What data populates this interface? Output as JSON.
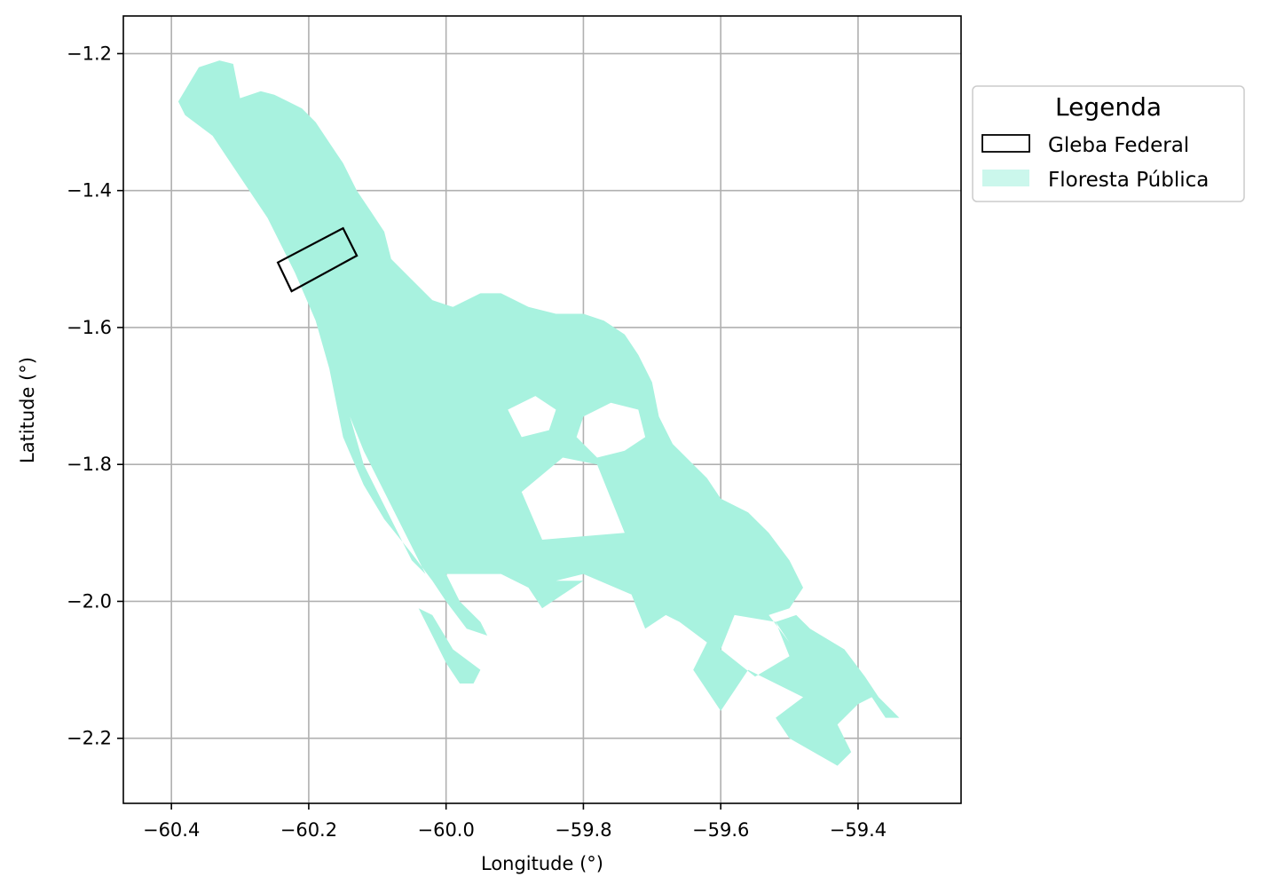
{
  "chart_data": {
    "type": "map",
    "xlabel": "Longitude (°)",
    "ylabel": "Latitude (°)",
    "xlim": [
      -60.47,
      -59.25
    ],
    "ylim": [
      -2.295,
      -1.145
    ],
    "xticks": [
      -60.4,
      -60.2,
      -60.0,
      -59.8,
      -59.6,
      -59.4
    ],
    "xtick_labels": [
      "−60.4",
      "−60.2",
      "−60.0",
      "−59.8",
      "−59.6",
      "−59.4"
    ],
    "yticks": [
      -1.2,
      -1.4,
      -1.6,
      -1.8,
      -2.0,
      -2.2
    ],
    "ytick_labels": [
      "−1.2",
      "−1.4",
      "−1.6",
      "−1.8",
      "−2.0",
      "−2.2"
    ],
    "grid": true,
    "legend": {
      "title": "Legenda",
      "placement": "outside-right-top",
      "entries": [
        {
          "label": "Gleba Federal",
          "style": "outline",
          "color": "#000000"
        },
        {
          "label": "Floresta Pública",
          "style": "fill",
          "color": "#a8f2df"
        }
      ]
    },
    "layers": [
      {
        "name": "Floresta Pública",
        "fill": "#a8f2df",
        "polygons": [
          [
            [
              -60.39,
              -1.27
            ],
            [
              -60.36,
              -1.22
            ],
            [
              -60.33,
              -1.21
            ],
            [
              -60.31,
              -1.215
            ],
            [
              -60.3,
              -1.265
            ],
            [
              -60.27,
              -1.255
            ],
            [
              -60.25,
              -1.26
            ],
            [
              -60.23,
              -1.27
            ],
            [
              -60.21,
              -1.28
            ],
            [
              -60.19,
              -1.3
            ],
            [
              -60.17,
              -1.33
            ],
            [
              -60.15,
              -1.36
            ],
            [
              -60.13,
              -1.4
            ],
            [
              -60.11,
              -1.43
            ],
            [
              -60.09,
              -1.46
            ],
            [
              -60.08,
              -1.5
            ],
            [
              -60.05,
              -1.53
            ],
            [
              -60.02,
              -1.56
            ],
            [
              -59.99,
              -1.57
            ],
            [
              -59.95,
              -1.55
            ],
            [
              -59.92,
              -1.55
            ],
            [
              -59.88,
              -1.57
            ],
            [
              -59.84,
              -1.58
            ],
            [
              -59.8,
              -1.58
            ],
            [
              -59.77,
              -1.59
            ],
            [
              -59.74,
              -1.61
            ],
            [
              -59.72,
              -1.64
            ],
            [
              -59.7,
              -1.68
            ],
            [
              -59.69,
              -1.73
            ],
            [
              -59.67,
              -1.77
            ],
            [
              -59.64,
              -1.8
            ],
            [
              -59.62,
              -1.82
            ],
            [
              -59.6,
              -1.85
            ],
            [
              -59.56,
              -1.87
            ],
            [
              -59.53,
              -1.9
            ],
            [
              -59.5,
              -1.94
            ],
            [
              -59.48,
              -1.98
            ],
            [
              -59.5,
              -2.01
            ],
            [
              -59.53,
              -2.02
            ],
            [
              -59.5,
              -2.06
            ],
            [
              -59.47,
              -2.04
            ],
            [
              -59.42,
              -2.07
            ],
            [
              -59.39,
              -2.11
            ],
            [
              -59.37,
              -2.14
            ],
            [
              -59.34,
              -2.17
            ],
            [
              -59.36,
              -2.17
            ],
            [
              -59.38,
              -2.14
            ],
            [
              -59.4,
              -2.15
            ],
            [
              -59.43,
              -2.18
            ],
            [
              -59.41,
              -2.22
            ],
            [
              -59.43,
              -2.24
            ],
            [
              -59.5,
              -2.2
            ],
            [
              -59.52,
              -2.17
            ],
            [
              -59.48,
              -2.14
            ],
            [
              -59.52,
              -2.12
            ],
            [
              -59.56,
              -2.1
            ],
            [
              -59.58,
              -2.13
            ],
            [
              -59.6,
              -2.16
            ],
            [
              -59.64,
              -2.1
            ],
            [
              -59.62,
              -2.06
            ],
            [
              -59.66,
              -2.03
            ],
            [
              -59.68,
              -2.02
            ],
            [
              -59.71,
              -2.04
            ],
            [
              -59.73,
              -1.99
            ],
            [
              -59.8,
              -1.96
            ],
            [
              -59.84,
              -1.97
            ],
            [
              -59.88,
              -1.98
            ],
            [
              -59.92,
              -1.96
            ],
            [
              -59.96,
              -1.96
            ],
            [
              -60.0,
              -1.96
            ],
            [
              -59.98,
              -2.0
            ],
            [
              -59.95,
              -2.03
            ],
            [
              -59.94,
              -2.05
            ],
            [
              -59.97,
              -2.04
            ],
            [
              -60.0,
              -2.0
            ],
            [
              -60.02,
              -1.97
            ],
            [
              -60.05,
              -1.93
            ],
            [
              -60.09,
              -1.88
            ],
            [
              -60.12,
              -1.83
            ],
            [
              -60.15,
              -1.76
            ],
            [
              -60.17,
              -1.66
            ],
            [
              -60.19,
              -1.59
            ],
            [
              -60.22,
              -1.52
            ],
            [
              -60.26,
              -1.44
            ],
            [
              -60.3,
              -1.38
            ],
            [
              -60.34,
              -1.32
            ],
            [
              -60.38,
              -1.29
            ]
          ],
          [
            [
              -60.04,
              -2.01
            ],
            [
              -60.02,
              -2.05
            ],
            [
              -60.0,
              -2.09
            ],
            [
              -59.98,
              -2.12
            ],
            [
              -59.96,
              -2.12
            ],
            [
              -59.95,
              -2.1
            ],
            [
              -59.99,
              -2.07
            ],
            [
              -60.02,
              -2.02
            ]
          ],
          [
            [
              -59.52,
              -2.03
            ],
            [
              -59.49,
              -2.02
            ],
            [
              -59.47,
              -2.04
            ],
            [
              -59.5,
              -2.06
            ]
          ]
        ],
        "holes": [
          [
            [
              -59.91,
              -1.72
            ],
            [
              -59.87,
              -1.7
            ],
            [
              -59.84,
              -1.72
            ],
            [
              -59.85,
              -1.75
            ],
            [
              -59.89,
              -1.76
            ]
          ],
          [
            [
              -59.8,
              -1.73
            ],
            [
              -59.76,
              -1.71
            ],
            [
              -59.72,
              -1.72
            ],
            [
              -59.71,
              -1.76
            ],
            [
              -59.74,
              -1.78
            ],
            [
              -59.78,
              -1.79
            ],
            [
              -59.81,
              -1.76
            ]
          ],
          [
            [
              -59.83,
              -1.79
            ],
            [
              -59.78,
              -1.8
            ],
            [
              -59.74,
              -1.9
            ],
            [
              -59.86,
              -1.91
            ],
            [
              -59.89,
              -1.84
            ]
          ],
          [
            [
              -59.58,
              -2.02
            ],
            [
              -59.52,
              -2.03
            ],
            [
              -59.5,
              -2.08
            ],
            [
              -59.55,
              -2.11
            ],
            [
              -59.6,
              -2.07
            ]
          ],
          [
            [
              -59.88,
              -1.98
            ],
            [
              -59.84,
              -1.97
            ],
            [
              -59.8,
              -1.97
            ],
            [
              -59.86,
              -2.01
            ]
          ],
          [
            [
              -60.14,
              -1.73
            ],
            [
              -60.12,
              -1.8
            ],
            [
              -60.05,
              -1.94
            ],
            [
              -60.03,
              -1.96
            ],
            [
              -60.08,
              -1.86
            ],
            [
              -60.12,
              -1.78
            ]
          ]
        ]
      },
      {
        "name": "Gleba Federal",
        "stroke": "#000000",
        "polygons": [
          [
            [
              -60.245,
              -1.505
            ],
            [
              -60.15,
              -1.455
            ],
            [
              -60.13,
              -1.495
            ],
            [
              -60.225,
              -1.547
            ]
          ]
        ]
      }
    ]
  }
}
